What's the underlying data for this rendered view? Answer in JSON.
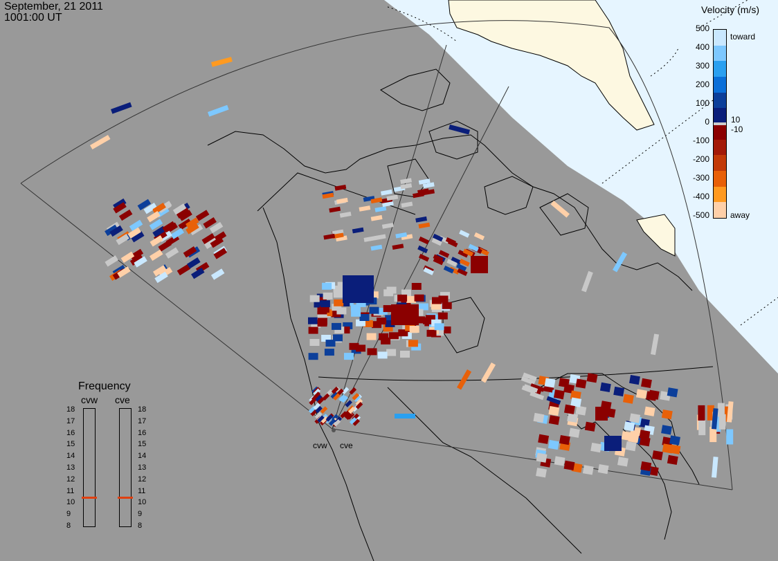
{
  "header": {
    "date": "September, 21 2011",
    "time": "1001:00 UT"
  },
  "legend": {
    "title": "Velocity (m/s)",
    "ticks": [
      "500",
      "400",
      "300",
      "200",
      "100",
      "0",
      "-100",
      "-200",
      "-300",
      "-400",
      "-500"
    ],
    "toward_label": "toward",
    "away_label": "away",
    "small_pos": "10",
    "small_neg": "-10",
    "colors": [
      "#c9e8ff",
      "#7dc8ff",
      "#2aa0f0",
      "#0a6fd8",
      "#0c3f9a",
      "#0a1e7a",
      "#8b0000",
      "#a31a08",
      "#c23a08",
      "#e86008",
      "#ff9a20",
      "#ffd0a8"
    ]
  },
  "frequency": {
    "title": "Frequency",
    "radars": [
      "cvw",
      "cve"
    ],
    "ticks": [
      "18",
      "17",
      "16",
      "15",
      "14",
      "13",
      "12",
      "11",
      "10",
      "9",
      "8"
    ],
    "cvw_mhz": 10.6,
    "cve_mhz": 10.6,
    "marker_color": "#e04010"
  },
  "radar_labels": [
    "cvw",
    "cve"
  ],
  "colors": {
    "sea": "#999999",
    "ice": "#e6f5ff",
    "land": "#fdf8e1",
    "ground_scatter": "#c8c8c8"
  }
}
